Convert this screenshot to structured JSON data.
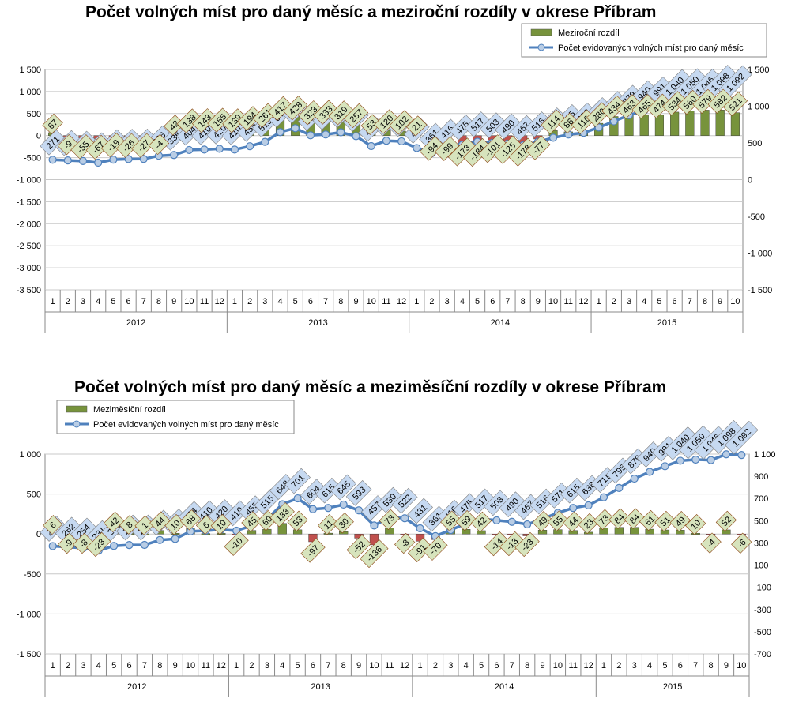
{
  "chart_data": [
    {
      "type": "bar",
      "title": "Počet volných míst pro daný měsíc a meziroční rozdíly v okrese Příbram",
      "legend": [
        {
          "label": "Meziroční rozdíl",
          "kind": "bar"
        },
        {
          "label": "Počet evidovaných volných míst pro daný měsíc",
          "kind": "line"
        }
      ],
      "legend_position": "top-right",
      "years": [
        "2012",
        "2013",
        "2014",
        "2015"
      ],
      "months": [
        "1",
        "2",
        "3",
        "4",
        "5",
        "6",
        "7",
        "8",
        "9",
        "10",
        "11",
        "12",
        "1",
        "2",
        "3",
        "4",
        "5",
        "6",
        "7",
        "8",
        "9",
        "10",
        "11",
        "12",
        "1",
        "2",
        "3",
        "4",
        "5",
        "6",
        "7",
        "8",
        "9",
        "10",
        "11",
        "12",
        "1",
        "2",
        "3",
        "4",
        "5",
        "6",
        "7",
        "8",
        "9",
        "10"
      ],
      "left_axis": {
        "ticks": [
          "1 500",
          "1 000",
          "500",
          "0",
          "-500",
          "-1 000",
          "-1 500",
          "-2 000",
          "-2 500",
          "-3 000",
          "-3 500"
        ],
        "range": [
          -3500,
          1500
        ]
      },
      "right_axis": {
        "ticks": [
          "1 500",
          "1 000",
          "500",
          "0",
          "-500",
          "-1 000",
          "-1 500"
        ],
        "range": [
          -1500,
          1500
        ]
      },
      "grid": true,
      "series": [
        {
          "name": "Meziroční rozdíl",
          "axis": "left",
          "values": [
            67,
            -9,
            -55,
            -67,
            -19,
            -26,
            -27,
            -4,
            42,
            138,
            143,
            155,
            139,
            194,
            261,
            417,
            428,
            323,
            333,
            319,
            257,
            53,
            120,
            102,
            21,
            -94,
            -99,
            -173,
            -184,
            -101,
            -125,
            -178,
            -77,
            114,
            86,
            116,
            280,
            434,
            463,
            465,
            474,
            534,
            560,
            579,
            582,
            521
          ]
        },
        {
          "name": "Počet evidovaných volných míst pro daný měsíc",
          "axis": "right",
          "values": [
            271,
            262,
            254,
            231,
            273,
            281,
            282,
            326,
            336,
            404,
            410,
            420,
            410,
            455,
            515,
            648,
            701,
            604,
            615,
            645,
            593,
            457,
            530,
            522,
            431,
            361,
            416,
            475,
            517,
            503,
            490,
            467,
            516,
            571,
            615,
            638,
            711,
            795,
            879,
            940,
            991,
            1040,
            1050,
            1046,
            1098,
            1092
          ]
        }
      ],
      "bar_labels": [
        "67",
        "-9",
        "-55",
        "-67",
        "-19",
        "-26",
        "-27",
        "-4",
        "42",
        "138",
        "143",
        "155",
        "139",
        "194",
        "261",
        "417",
        "428",
        "323",
        "333",
        "319",
        "257",
        "53",
        "120",
        "102",
        "21",
        "-94",
        "-99",
        "-173",
        "-184",
        "-101",
        "-125",
        "-178",
        "-77",
        "114",
        "86",
        "116",
        "280",
        "434",
        "463",
        "465",
        "474",
        "534",
        "560",
        "579",
        "582",
        "521"
      ],
      "line_labels": [
        "271",
        "262",
        "254",
        "231",
        "273",
        "281",
        "282",
        "326",
        "336",
        "404",
        "410",
        "420",
        "410",
        "455",
        "515",
        "648",
        "701",
        "604",
        "615",
        "645",
        "593",
        "457",
        "530",
        "522",
        "431",
        "361",
        "416",
        "475",
        "517",
        "503",
        "490",
        "467",
        "516",
        "571",
        "615",
        "638",
        "711",
        "795",
        "879",
        "940",
        "991",
        "1 040",
        "1 050",
        "1 046",
        "1 098",
        "1 092"
      ]
    },
    {
      "type": "bar",
      "title": "Počet volných míst pro daný měsíc a meziměsíční rozdíly v okrese Příbram",
      "legend": [
        {
          "label": "Meziměsíční rozdíl",
          "kind": "bar"
        },
        {
          "label": "Počet evidovaných volných míst pro daný měsíc",
          "kind": "line"
        }
      ],
      "legend_position": "top-left",
      "years": [
        "2012",
        "2013",
        "2014",
        "2015"
      ],
      "months": [
        "1",
        "2",
        "3",
        "4",
        "5",
        "6",
        "7",
        "8",
        "9",
        "10",
        "11",
        "12",
        "1",
        "2",
        "3",
        "4",
        "5",
        "6",
        "7",
        "8",
        "9",
        "10",
        "11",
        "12",
        "1",
        "2",
        "3",
        "4",
        "5",
        "6",
        "7",
        "8",
        "9",
        "10",
        "11",
        "12",
        "1",
        "2",
        "3",
        "4",
        "5",
        "6",
        "7",
        "8",
        "9",
        "10"
      ],
      "left_axis": {
        "ticks": [
          "1 000",
          "500",
          "0",
          "-500",
          "-1 000",
          "-1 500"
        ],
        "range": [
          -1500,
          1000
        ]
      },
      "right_axis": {
        "ticks": [
          "1 100",
          "900",
          "700",
          "500",
          "300",
          "100",
          "-100",
          "-300",
          "-500",
          "-700"
        ],
        "range": [
          -700,
          1100
        ]
      },
      "grid": true,
      "series": [
        {
          "name": "Meziměsíční rozdíl",
          "axis": "left",
          "values": [
            6,
            -9,
            -8,
            -23,
            42,
            8,
            1,
            44,
            10,
            68,
            6,
            10,
            -10,
            45,
            60,
            133,
            53,
            -97,
            11,
            30,
            -52,
            -136,
            73,
            -8,
            -91,
            -70,
            55,
            59,
            42,
            -14,
            -13,
            -23,
            49,
            55,
            44,
            23,
            73,
            84,
            84,
            61,
            51,
            49,
            10,
            -4,
            52,
            -6
          ]
        },
        {
          "name": "Počet evidovaných volných míst pro daný měsíc",
          "axis": "right",
          "values": [
            271,
            262,
            254,
            231,
            273,
            281,
            282,
            326,
            336,
            404,
            410,
            420,
            410,
            455,
            515,
            648,
            701,
            604,
            615,
            645,
            593,
            457,
            530,
            522,
            431,
            361,
            416,
            475,
            517,
            503,
            490,
            467,
            516,
            571,
            615,
            638,
            711,
            795,
            879,
            940,
            991,
            1040,
            1050,
            1046,
            1098,
            1092
          ]
        }
      ],
      "bar_labels": [
        "6",
        "-9",
        "-8",
        "-23",
        "42",
        "8",
        "1",
        "44",
        "10",
        "68",
        "6",
        "10",
        "-10",
        "45",
        "60",
        "133",
        "53",
        "-97",
        "11",
        "30",
        "-52",
        "-136",
        "73",
        "-8",
        "-91",
        "-70",
        "55",
        "59",
        "42",
        "-14",
        "-13",
        "-23",
        "49",
        "55",
        "44",
        "23",
        "73",
        "84",
        "84",
        "61",
        "51",
        "49",
        "10",
        "-4",
        "52",
        "-6"
      ],
      "line_labels": [
        "271",
        "262",
        "254",
        "231",
        "273",
        "281",
        "282",
        "326",
        "336",
        "404",
        "410",
        "420",
        "410",
        "455",
        "515",
        "648",
        "701",
        "604",
        "615",
        "645",
        "593",
        "457",
        "530",
        "522",
        "431",
        "361",
        "416",
        "475",
        "517",
        "503",
        "490",
        "467",
        "516",
        "571",
        "615",
        "638",
        "711",
        "795",
        "879",
        "940",
        "991",
        "1 040",
        "1 050",
        "1 046",
        "1 098",
        "1 092"
      ]
    }
  ],
  "colors": {
    "bar_positive": "#77933c",
    "bar_negative": "#c0504d",
    "line": "#4f81bd",
    "marker_fill": "#b9cde5",
    "line_label_fill": "#c6d9f1",
    "bar_label_fill": "#d7e4bd",
    "bar_label_border": "#8b4513"
  }
}
